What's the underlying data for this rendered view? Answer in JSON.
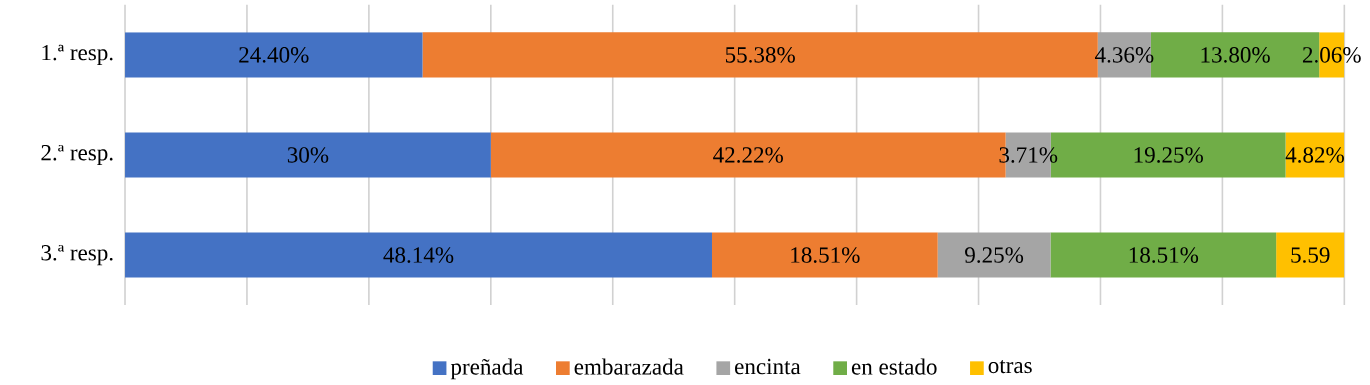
{
  "chart_data": {
    "type": "bar",
    "orientation": "horizontal",
    "stacked": true,
    "categories": [
      "1.ª resp.",
      "2.ª resp.",
      "3.ª resp."
    ],
    "series": [
      {
        "name": "preñada",
        "color": "#4472c4",
        "values": [
          24.4,
          30,
          48.14
        ],
        "value_labels": [
          "24.40%",
          "30%",
          "48.14%"
        ]
      },
      {
        "name": "embarazada",
        "color": "#ed7d31",
        "values": [
          55.38,
          42.22,
          18.51
        ],
        "value_labels": [
          "55.38%",
          "42.22%",
          "18.51%"
        ]
      },
      {
        "name": "encinta",
        "color": "#a5a5a5",
        "values": [
          4.36,
          3.71,
          9.25
        ],
        "value_labels": [
          "4.36%",
          "3.71%",
          "9.25%"
        ]
      },
      {
        "name": "en estado",
        "color": "#70ad47",
        "values": [
          13.8,
          19.25,
          18.51
        ],
        "value_labels": [
          "13.80%",
          "19.25%",
          "18.51%"
        ]
      },
      {
        "name": "otras",
        "color": "#ffc000",
        "values": [
          2.06,
          4.82,
          5.59
        ],
        "value_labels": [
          "2.06%",
          "4.82%",
          "5.59"
        ]
      }
    ],
    "xlim": [
      0,
      100
    ],
    "xticks": [
      {
        "value": 0,
        "label": null
      },
      {
        "value": 10,
        "label": null
      },
      {
        "value": 20,
        "label": null
      },
      {
        "value": 30,
        "label": null
      },
      {
        "value": 40,
        "label": null
      },
      {
        "value": 50,
        "label": null
      },
      {
        "value": 60,
        "label": null
      },
      {
        "value": 70,
        "label": null
      },
      {
        "value": 80,
        "label": null
      },
      {
        "value": 90,
        "label": null
      },
      {
        "value": 100,
        "label": null
      }
    ],
    "grid": "x",
    "legend": "bottom",
    "tick_labels": "y"
  }
}
